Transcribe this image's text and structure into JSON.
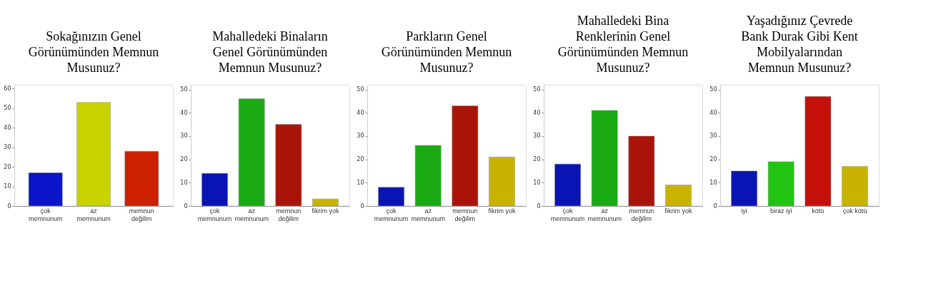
{
  "chart_data": [
    {
      "type": "bar",
      "title": "Sokağınızın Genel Görünümünden Memnun Musunuz?",
      "categories": [
        "çok memnunum",
        "az memnunum",
        "memnun değilim"
      ],
      "values": [
        17,
        53,
        28
      ],
      "colors": [
        "#0a14c8",
        "#c8d400",
        "#cc2000"
      ],
      "ylim": [
        0,
        62
      ],
      "yticks": [
        0,
        10,
        20,
        30,
        40,
        50,
        60
      ],
      "grid": false
    },
    {
      "type": "bar",
      "title": "Mahalledeki Binaların Genel Görünümünden Memnun Musunuz?",
      "categories": [
        "çok memnunum",
        "az memnunum",
        "memnun değilim",
        "fikrim yok"
      ],
      "values": [
        14,
        46,
        35,
        3
      ],
      "colors": [
        "#0a14b4",
        "#1aaa14",
        "#aa1408",
        "#c8b400"
      ],
      "ylim": [
        0,
        52
      ],
      "yticks": [
        0,
        10,
        20,
        30,
        40,
        50
      ],
      "grid": false
    },
    {
      "type": "bar",
      "title": "Parkların Genel Görünümünden Memnun Musunuz?",
      "categories": [
        "çok memnunum",
        "az memnunum",
        "memnun değilim",
        "fikrim yok"
      ],
      "values": [
        8,
        26,
        43,
        21
      ],
      "colors": [
        "#0a14b4",
        "#1aaa14",
        "#aa1408",
        "#c8b400"
      ],
      "ylim": [
        0,
        52
      ],
      "yticks": [
        0,
        10,
        20,
        30,
        40,
        50
      ],
      "grid": false
    },
    {
      "type": "bar",
      "title": "Mahalledeki Bina Renklerinin Genel Görünümünden Memnun Musunuz?",
      "categories": [
        "çok memnunum",
        "az memnunum",
        "memnun değilim",
        "fikrim yok"
      ],
      "values": [
        18,
        41,
        30,
        9
      ],
      "colors": [
        "#0a14b4",
        "#1aaa14",
        "#aa1408",
        "#c8b400"
      ],
      "ylim": [
        0,
        52
      ],
      "yticks": [
        0,
        10,
        20,
        30,
        40,
        50
      ],
      "grid": false
    },
    {
      "type": "bar",
      "title": "Yaşadığınız Çevrede Bank Durak Gibi Kent Mobilyalarından Memnun Musunuz?",
      "categories": [
        "iyi",
        "biraz iyi",
        "kötü",
        "çok kötü"
      ],
      "values": [
        15,
        19,
        47,
        17
      ],
      "colors": [
        "#0a14b4",
        "#22c414",
        "#c41008",
        "#c8b400"
      ],
      "ylim": [
        0,
        52
      ],
      "yticks": [
        0,
        10,
        20,
        30,
        40,
        50
      ],
      "grid": false
    }
  ]
}
